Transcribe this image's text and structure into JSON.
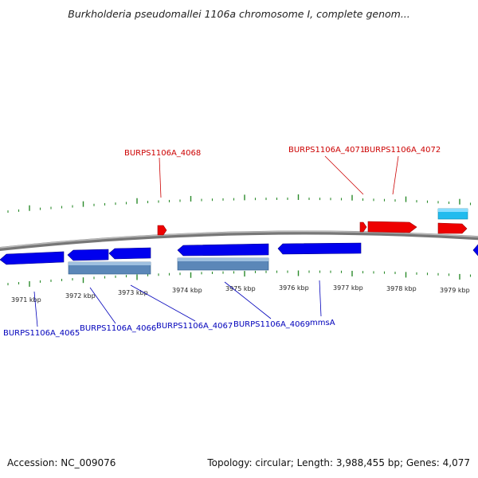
{
  "title": "Burkholderia pseudomallei 1106a chromosome I, complete genom...",
  "footer": {
    "accession": "Accession: NC_009076",
    "summary": "Topology: circular; Length: 3,988,455 bp; Genes: 4,077"
  },
  "colors": {
    "forward_gene": "#ee0000",
    "reverse_gene": "#0000ee",
    "rna_forward": "#33bbee",
    "rna_reverse": "#5588bb",
    "tick": "#2a8a2a",
    "backbone": "#888888"
  },
  "scale_labels": [
    "3971 kbp",
    "3972 kbp",
    "3973 kbp",
    "3974 kbp",
    "3975 kbp",
    "3976 kbp",
    "3977 kbp",
    "3978 kbp",
    "3979 kbp"
  ],
  "forward_labels": [
    "BURPS1106A_4068",
    "BURPS1106A_4071",
    "BURPS1106A_4072"
  ],
  "reverse_labels": [
    "BURPS1106A_4065",
    "BURPS1106A_4066",
    "BURPS1106A_4067",
    "BURPS1106A_4069",
    "mmsA"
  ]
}
